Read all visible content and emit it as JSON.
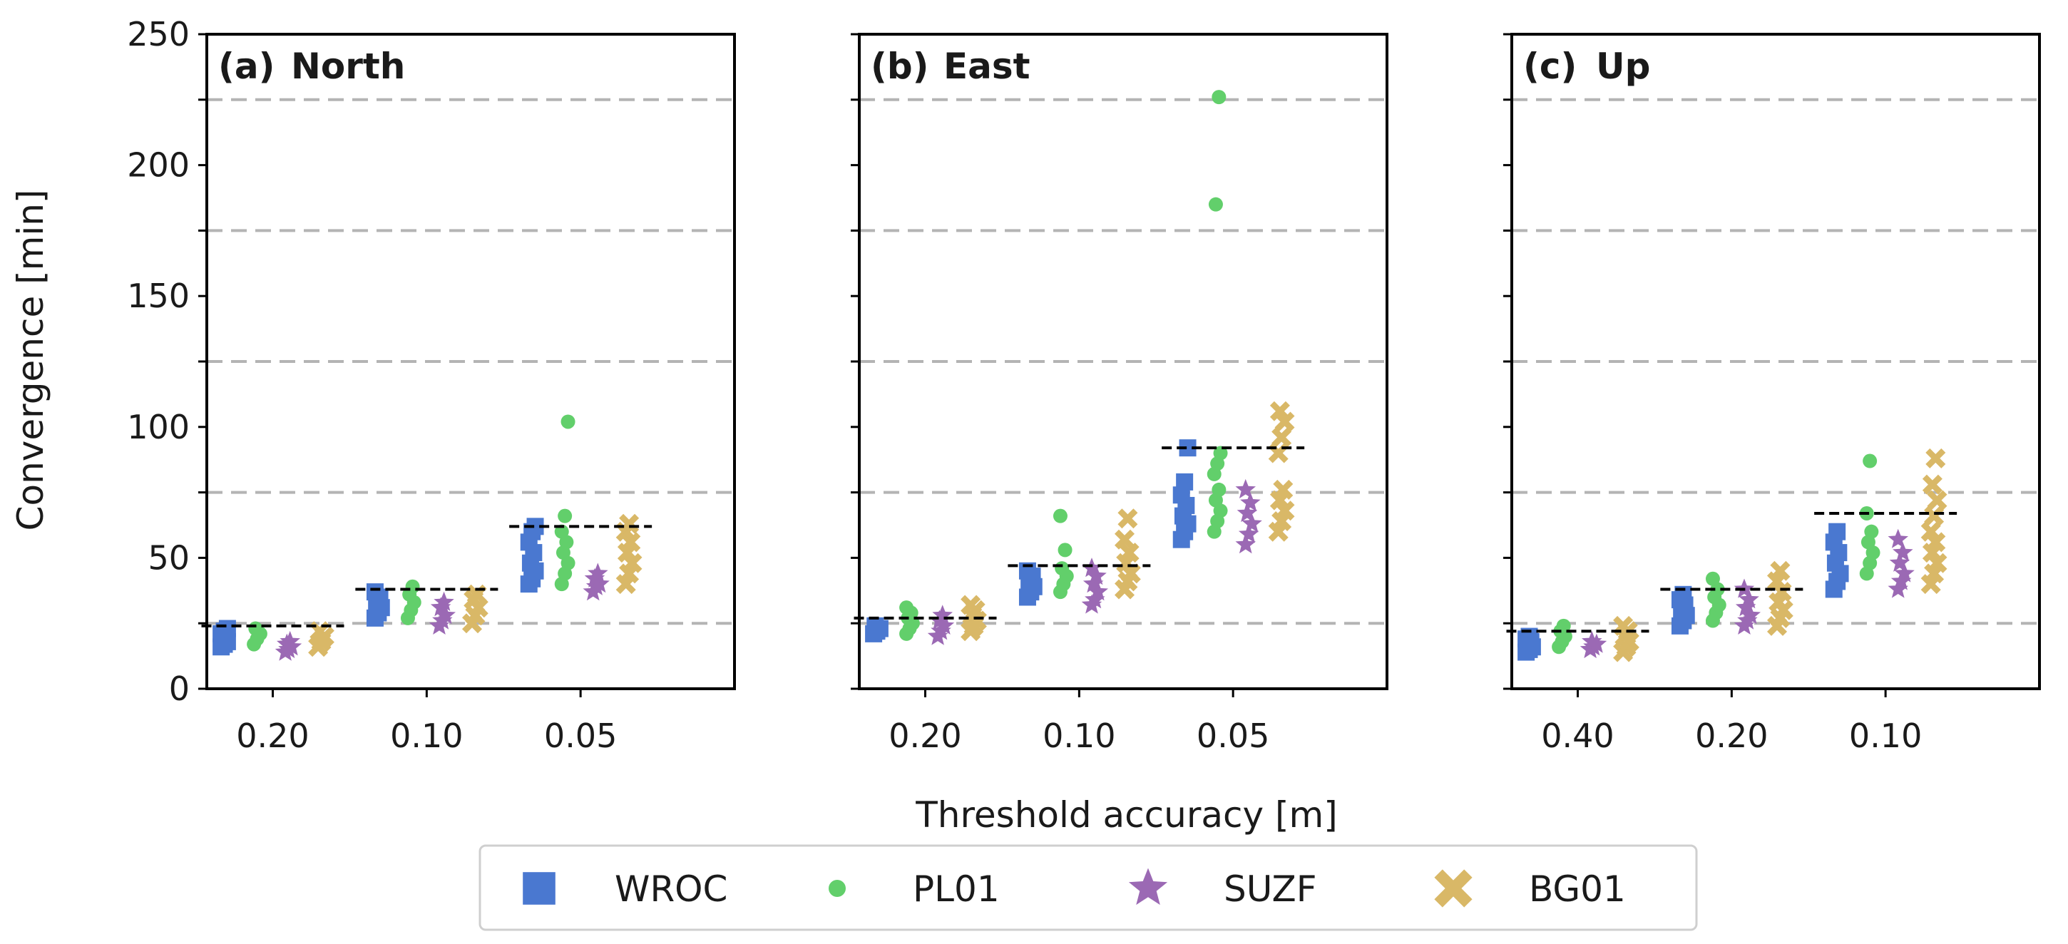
{
  "chart_data": {
    "type": "scatter",
    "ylabel": "Convergence [min]",
    "xlabel": "Threshold accuracy [m]",
    "ylim": [
      0,
      250
    ],
    "yticks": [
      0,
      50,
      100,
      150,
      200,
      250
    ],
    "yminor": [
      25,
      75,
      125,
      175,
      225
    ],
    "grid": "horizontal dashed at 25, 75, 125, 175, 225",
    "legend_position": "bottom-center",
    "series_styles": [
      {
        "name": "WROC",
        "color": "#4a78d0",
        "marker": "square"
      },
      {
        "name": "PL01",
        "color": "#62cf6b",
        "marker": "circle"
      },
      {
        "name": "SUZF",
        "color": "#9b69b4",
        "marker": "star"
      },
      {
        "name": "BG01",
        "color": "#d9b867",
        "marker": "x"
      }
    ],
    "panels": [
      {
        "label": "(a)",
        "title": "North",
        "categories": [
          "0.20",
          "0.10",
          "0.05"
        ],
        "means": [
          24,
          38,
          62
        ],
        "series": [
          {
            "name": "WROC",
            "values": [
              [
                16,
                17,
                18,
                19,
                20,
                21,
                22,
                23
              ],
              [
                27,
                29,
                31,
                33,
                35,
                37
              ],
              [
                40,
                42,
                45,
                48,
                52,
                56,
                60,
                62
              ]
            ]
          },
          {
            "name": "PL01",
            "values": [
              [
                17,
                19,
                21,
                23
              ],
              [
                27,
                30,
                33,
                36,
                39
              ],
              [
                40,
                44,
                48,
                52,
                56,
                60,
                66,
                102
              ]
            ]
          },
          {
            "name": "SUZF",
            "values": [
              [
                14,
                15,
                16,
                17,
                18
              ],
              [
                24,
                26,
                28,
                31,
                33
              ],
              [
                37,
                39,
                40,
                42,
                44
              ]
            ]
          },
          {
            "name": "BG01",
            "values": [
              [
                16,
                18,
                20,
                22
              ],
              [
                25,
                28,
                31,
                34,
                36
              ],
              [
                40,
                44,
                48,
                52,
                56,
                60,
                63
              ]
            ]
          }
        ]
      },
      {
        "label": "(b)",
        "title": "East",
        "categories": [
          "0.20",
          "0.10",
          "0.05"
        ],
        "means": [
          27,
          47,
          92
        ],
        "series": [
          {
            "name": "WROC",
            "values": [
              [
                21,
                22,
                23,
                24
              ],
              [
                35,
                37,
                39,
                41,
                43,
                45
              ],
              [
                57,
                60,
                63,
                66,
                70,
                74,
                79,
                92
              ]
            ]
          },
          {
            "name": "PL01",
            "values": [
              [
                21,
                23,
                25,
                27,
                29,
                31
              ],
              [
                37,
                40,
                43,
                46,
                53,
                66
              ],
              [
                60,
                64,
                68,
                72,
                76,
                82,
                86,
                90,
                185,
                226
              ]
            ]
          },
          {
            "name": "SUZF",
            "values": [
              [
                20,
                22,
                24,
                26,
                28
              ],
              [
                32,
                34,
                37,
                40,
                43,
                46
              ],
              [
                55,
                59,
                63,
                67,
                71,
                76
              ]
            ]
          },
          {
            "name": "BG01",
            "values": [
              [
                22,
                24,
                26,
                28,
                30,
                32
              ],
              [
                38,
                41,
                44,
                48,
                52,
                57,
                65
              ],
              [
                60,
                64,
                68,
                72,
                76,
                90,
                96,
                102,
                106
              ]
            ]
          }
        ]
      },
      {
        "label": "(c)",
        "title": "Up",
        "categories": [
          "0.40",
          "0.20",
          "0.10"
        ],
        "means": [
          22,
          38,
          67
        ],
        "series": [
          {
            "name": "WROC",
            "values": [
              [
                14,
                15,
                16,
                17,
                18,
                19,
                20
              ],
              [
                24,
                26,
                28,
                30,
                32,
                34,
                36
              ],
              [
                38,
                41,
                44,
                48,
                52,
                56,
                60
              ]
            ]
          },
          {
            "name": "PL01",
            "values": [
              [
                16,
                18,
                20,
                22,
                24
              ],
              [
                26,
                29,
                32,
                35,
                38,
                42
              ],
              [
                44,
                48,
                52,
                56,
                60,
                67,
                87
              ]
            ]
          },
          {
            "name": "SUZF",
            "values": [
              [
                15,
                16,
                17,
                18
              ],
              [
                24,
                26,
                28,
                31,
                34,
                38
              ],
              [
                38,
                41,
                44,
                48,
                52,
                57
              ]
            ]
          },
          {
            "name": "BG01",
            "values": [
              [
                14,
                16,
                18,
                20,
                22,
                24
              ],
              [
                24,
                27,
                30,
                33,
                37,
                41,
                45
              ],
              [
                40,
                44,
                48,
                52,
                56,
                60,
                66,
                72,
                78,
                88
              ]
            ]
          }
        ]
      }
    ]
  }
}
